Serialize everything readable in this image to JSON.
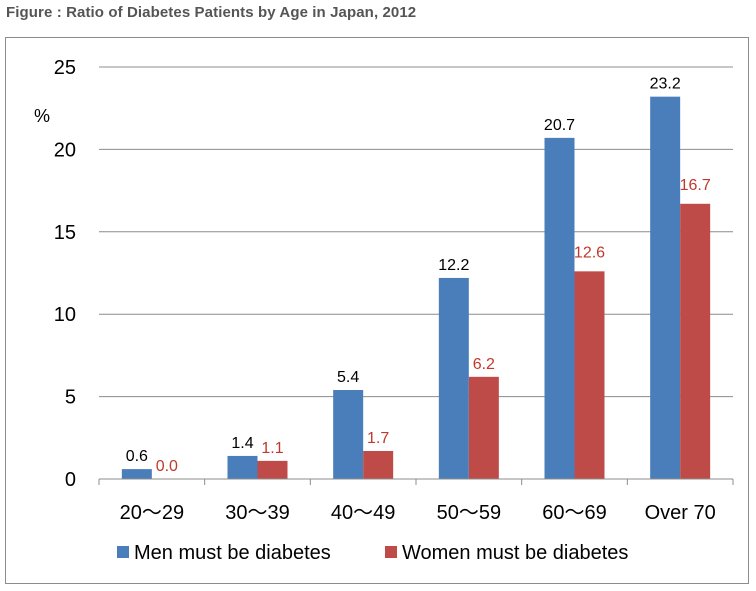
{
  "figure_title": "Figure : Ratio of Diabetes Patients by Age in Japan, 2012",
  "colors": {
    "men": "#4a7ebb",
    "women": "#be4b48",
    "women_label": "#c0392b"
  },
  "chart_data": {
    "type": "bar",
    "title": "Figure : Ratio of Diabetes Patients by Age in Japan, 2012",
    "ylabel": "%",
    "xlabel": "",
    "ylim": [
      0,
      25
    ],
    "yticks": [
      0,
      5,
      10,
      15,
      20,
      25
    ],
    "grid": true,
    "legend_position": "bottom",
    "categories": [
      "20～29",
      "30～39",
      "40～49",
      "50～59",
      "60～69",
      "Over 70"
    ],
    "series": [
      {
        "name": "Men must be diabetes",
        "values": [
          0.6,
          1.4,
          5.4,
          12.2,
          20.7,
          23.2
        ],
        "labels": [
          "0.6",
          "1.4",
          "5.4",
          "12.2",
          "20.7",
          "23.2"
        ]
      },
      {
        "name": "Women must be diabetes",
        "values": [
          0.0,
          1.1,
          1.7,
          6.2,
          12.6,
          16.7
        ],
        "labels": [
          "0.0",
          "1.1",
          "1.7",
          "6.2",
          "12.6",
          "16.7"
        ]
      }
    ]
  }
}
